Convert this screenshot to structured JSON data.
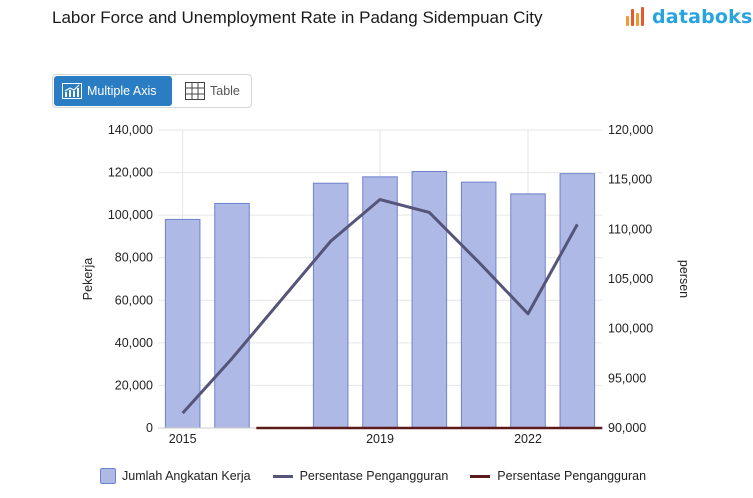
{
  "header": {
    "title": "Labor Force and Unemployment Rate in Padang Sidempuan City",
    "logo_text": "databoks",
    "logo_icon": "databoks-logo-icon"
  },
  "toggle": {
    "multi_label": "Multiple Axis",
    "table_label": "Table",
    "multi_icon": "chart-icon",
    "table_icon": "grid-icon"
  },
  "colors": {
    "bar_fill": "#aeb9e6",
    "bar_stroke": "#6f82cc",
    "line1": "#55557a",
    "line2": "#5c1a1a",
    "accent": "#2b7dc3"
  },
  "chart_data": {
    "type": "bar",
    "years": [
      2015,
      2016,
      2017,
      2018,
      2019,
      2020,
      2021,
      2022,
      2023
    ],
    "x_tick_labels": [
      "2015",
      "2019",
      "2022"
    ],
    "x_tick_years": [
      2015,
      2019,
      2022
    ],
    "left_axis": {
      "label": "Pekerja",
      "min": 0,
      "max": 140000,
      "ticks": [
        "0",
        "20,000",
        "40,000",
        "60,000",
        "80,000",
        "100,000",
        "120,000",
        "140,000"
      ],
      "tick_values": [
        0,
        20000,
        40000,
        60000,
        80000,
        100000,
        120000,
        140000
      ]
    },
    "right_axis": {
      "label": "persen",
      "min": 90000,
      "max": 120000,
      "ticks": [
        "90,000",
        "95,000",
        "100,000",
        "105,000",
        "110,000",
        "115,000",
        "120,000"
      ],
      "tick_values": [
        90000,
        95000,
        100000,
        105000,
        110000,
        115000,
        120000
      ]
    },
    "series": [
      {
        "name": "Jumlah Angkatan Kerja",
        "type": "bar",
        "axis": "left",
        "x": [
          2015,
          2016,
          2018,
          2019,
          2020,
          2021,
          2022,
          2023
        ],
        "values": [
          98000,
          105500,
          115000,
          118000,
          120500,
          115500,
          110000,
          119500
        ]
      },
      {
        "name": "Persentase Pengangguran",
        "type": "line",
        "axis": "right",
        "x": [
          2015,
          2016,
          2018,
          2019,
          2020,
          2021,
          2022,
          2023
        ],
        "values": [
          91500,
          97000,
          108800,
          113000,
          111700,
          106700,
          101500,
          110500
        ]
      },
      {
        "name": "Persentase Pengangguran",
        "type": "line",
        "axis": "right",
        "x": [
          2017,
          2023
        ],
        "values": [
          90000,
          90000
        ]
      }
    ],
    "grid": true,
    "legend_position": "bottom"
  }
}
